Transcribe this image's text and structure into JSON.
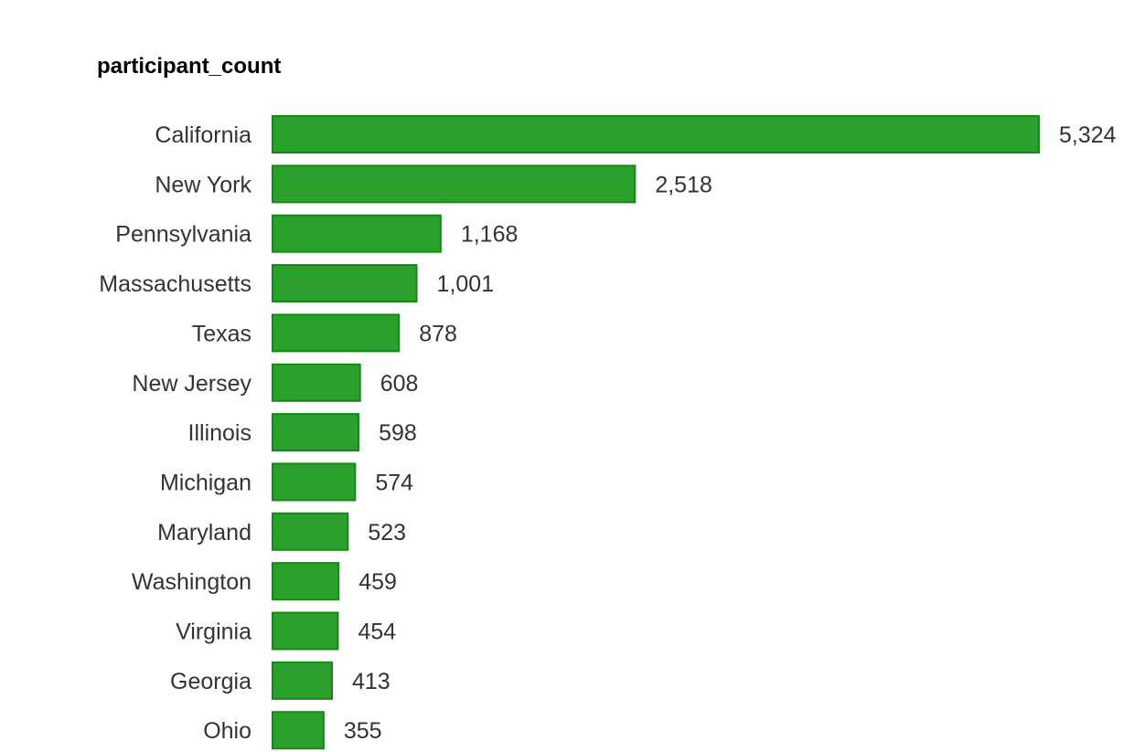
{
  "chart_data": {
    "type": "bar",
    "orientation": "horizontal",
    "title": "participant_count",
    "xlabel": "",
    "ylabel": "",
    "grid": false,
    "legend": "none",
    "bar_color": "#2ca02c",
    "bar_edge_color": "#138a13",
    "categories": [
      "California",
      "New York",
      "Pennsylvania",
      "Massachusetts",
      "Texas",
      "New Jersey",
      "Illinois",
      "Michigan",
      "Maryland",
      "Washington",
      "Virginia",
      "Georgia",
      "Ohio"
    ],
    "values": [
      5324,
      2518,
      1168,
      1001,
      878,
      608,
      598,
      574,
      523,
      459,
      454,
      413,
      355
    ],
    "value_labels": [
      "5,324",
      "2,518",
      "1,168",
      "1,001",
      "878",
      "608",
      "598",
      "574",
      "523",
      "459",
      "454",
      "413",
      "355"
    ],
    "xlim": [
      0,
      5324
    ]
  }
}
